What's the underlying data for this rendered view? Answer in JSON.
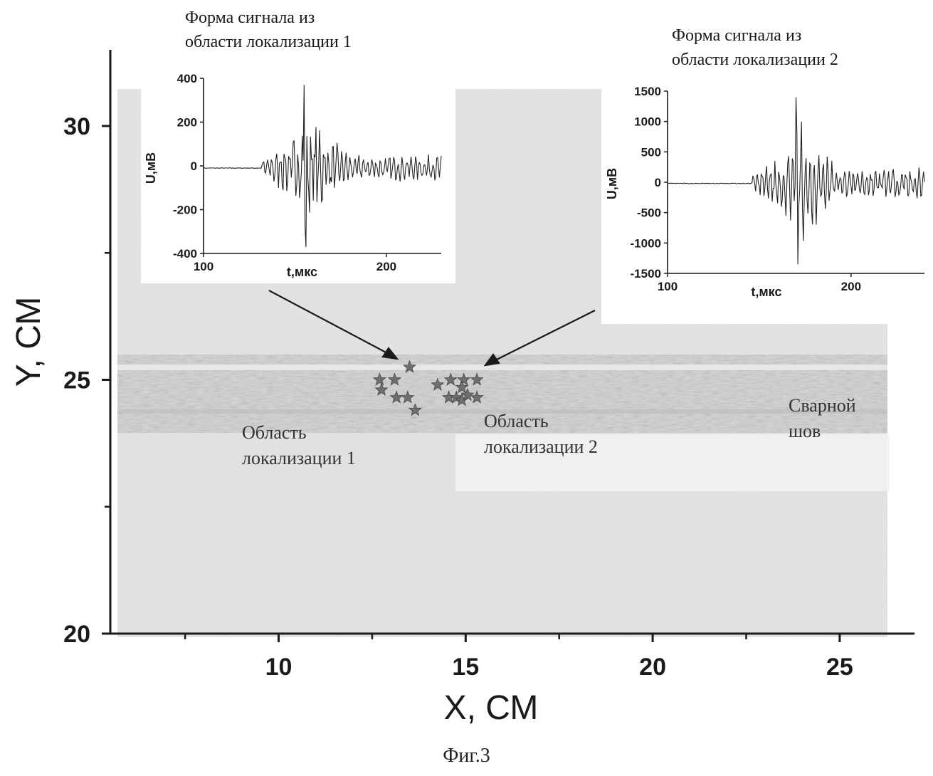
{
  "figure": {
    "caption": "Фиг.3"
  },
  "colors": {
    "ink": "#1a1a1a",
    "photo_bg": "#e6e6e6",
    "weld": "#cfcfcf",
    "marker": "#6f6f6f"
  },
  "chart_data": [
    {
      "id": "main",
      "type": "scatter",
      "title": "",
      "xlabel": "X, СМ",
      "ylabel": "Y, СМ",
      "xlim": [
        5.5,
        27
      ],
      "ylim": [
        20,
        31.5
      ],
      "x_major_ticks": [
        10,
        15,
        20,
        25
      ],
      "x_minor_ticks": [
        7.5,
        12.5,
        17.5,
        22.5
      ],
      "y_major_ticks": [
        20,
        25,
        30
      ],
      "y_minor_ticks": [
        22.5,
        27.5
      ],
      "x_tick_labels": [
        "10",
        "15",
        "20",
        "25"
      ],
      "y_tick_labels": [
        "20",
        "25",
        "30"
      ],
      "series": [
        {
          "name": "Область локализации 1",
          "marker": "star",
          "points": [
            [
              13.5,
              25.25
            ],
            [
              12.7,
              25.0
            ],
            [
              13.1,
              25.0
            ],
            [
              12.75,
              24.8
            ],
            [
              13.15,
              24.65
            ],
            [
              13.45,
              24.65
            ],
            [
              13.65,
              24.4
            ]
          ]
        },
        {
          "name": "Область локализации 2",
          "marker": "star",
          "points": [
            [
              14.25,
              24.9
            ],
            [
              14.6,
              25.0
            ],
            [
              14.95,
              25.0
            ],
            [
              15.3,
              25.0
            ],
            [
              14.9,
              24.85
            ],
            [
              14.55,
              24.65
            ],
            [
              14.75,
              24.65
            ],
            [
              14.9,
              24.6
            ],
            [
              15.05,
              24.7
            ],
            [
              15.3,
              24.65
            ]
          ]
        }
      ],
      "annotations": [
        {
          "id": "region1",
          "lines": [
            "Область",
            "локализации 1"
          ]
        },
        {
          "id": "region2",
          "lines": [
            "Область",
            "локализации 2"
          ]
        },
        {
          "id": "weld",
          "lines": [
            "Сварной",
            "шов"
          ]
        }
      ]
    },
    {
      "id": "inset1",
      "type": "line",
      "title_lines": [
        "Форма сигнала из",
        "области локализации 1"
      ],
      "xlabel": "t,мкс",
      "ylabel": "U,мВ",
      "xlim": [
        100,
        230
      ],
      "ylim": [
        -400,
        400
      ],
      "x_tick_labels": [
        "100",
        "200"
      ],
      "x_ticks": [
        100,
        200
      ],
      "y_ticks": [
        400,
        200,
        0,
        -200,
        -400
      ],
      "y_tick_labels": [
        "400",
        "200",
        "0",
        "-200",
        "-400"
      ],
      "signal": {
        "onset": 132,
        "peak_time": 155,
        "peak_amplitude": 370,
        "min_amplitude": -370,
        "pre_level": -10,
        "cycles_per_us": 0.42,
        "tail_amplitude": 55,
        "noise_seed": 7
      }
    },
    {
      "id": "inset2",
      "type": "line",
      "title_lines": [
        "Форма сигнала из",
        "области локализации 2"
      ],
      "xlabel": "t,мкс",
      "ylabel": "U,мВ",
      "xlim": [
        100,
        240
      ],
      "ylim": [
        -1500,
        1500
      ],
      "x_tick_labels": [
        "100",
        "200"
      ],
      "x_ticks": [
        100,
        200
      ],
      "y_ticks": [
        1500,
        1000,
        500,
        0,
        -500,
        -1000,
        -1500
      ],
      "y_tick_labels": [
        "1500",
        "1000",
        "500",
        "0",
        "-500",
        "-1000",
        "-1500"
      ],
      "signal": {
        "onset": 146,
        "peak_time": 170,
        "peak_amplitude": 1400,
        "min_amplitude": -1350,
        "pre_level": -20,
        "cycles_per_us": 0.42,
        "tail_amplitude": 230,
        "noise_seed": 13
      }
    }
  ]
}
